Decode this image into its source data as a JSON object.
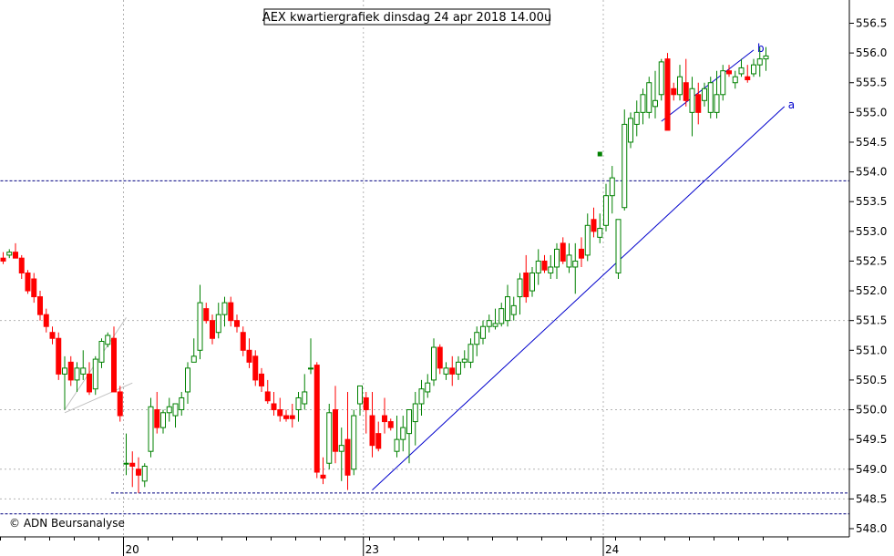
{
  "title": "AEX kwartiergrafiek dinsdag 24 apr 2018 14.00u",
  "copyright": "© ADN Beursanalyse",
  "colors": {
    "up": "#008000",
    "down": "#ff0000",
    "trendline": "#0000cc",
    "level": "#000080",
    "grid": "#b4b4b4",
    "axis": "#000000"
  },
  "chart_data": {
    "type": "candlestick",
    "title": "AEX kwartiergrafiek dinsdag 24 apr 2018 14.00u",
    "y_axis": {
      "min": 548.0,
      "max": 556.75,
      "ticks": [
        "548.0",
        "548.5",
        "549.0",
        "549.5",
        "550.0",
        "550.5",
        "551.0",
        "551.5",
        "552.0",
        "552.5",
        "553.0",
        "553.5",
        "554.0",
        "554.5",
        "555.0",
        "555.5",
        "556.0",
        "556.5"
      ]
    },
    "x_axis": {
      "date_labels": [
        {
          "label": "20",
          "bar": 20
        },
        {
          "label": "23",
          "bar": 59
        },
        {
          "label": "24",
          "bar": 98
        }
      ],
      "grid_bars": [
        20,
        59,
        98
      ]
    },
    "horizontal_grid": [
      548.5,
      549.0,
      550.0,
      551.5
    ],
    "levels": [
      {
        "value": 553.85,
        "from_bar": 0,
        "to_bar": 133
      },
      {
        "value": 548.6,
        "from_bar": 18,
        "to_bar": 133
      },
      {
        "value": 548.25,
        "from_bar": 0,
        "to_bar": 133
      }
    ],
    "trendlines": [
      {
        "label": "a",
        "from": [
          60,
          548.65
        ],
        "to": [
          127,
          555.1
        ]
      },
      {
        "label": "b",
        "from": [
          107,
          554.85
        ],
        "to": [
          122,
          556.05
        ]
      },
      {
        "label": "",
        "from": [
          10,
          550.0
        ],
        "to": [
          20,
          551.55
        ],
        "color": "#c0c0c0"
      },
      {
        "label": "",
        "from": [
          10,
          549.95
        ],
        "to": [
          21,
          550.45
        ],
        "color": "#c0c0c0"
      }
    ],
    "markers": [
      {
        "bar": 97,
        "value": 554.3,
        "color": "#008000"
      }
    ],
    "ohlc": [
      [
        552.55,
        552.65,
        552.45,
        552.5
      ],
      [
        552.6,
        552.7,
        552.55,
        552.65
      ],
      [
        552.65,
        552.8,
        552.6,
        552.55
      ],
      [
        552.55,
        552.6,
        552.2,
        552.3
      ],
      [
        552.3,
        552.35,
        551.95,
        552.0
      ],
      [
        552.2,
        552.3,
        551.8,
        551.9
      ],
      [
        551.9,
        552.0,
        551.5,
        551.6
      ],
      [
        551.6,
        551.7,
        551.3,
        551.4
      ],
      [
        551.3,
        551.4,
        551.1,
        551.2
      ],
      [
        551.2,
        551.3,
        550.5,
        550.6
      ],
      [
        550.6,
        550.9,
        550.0,
        550.7
      ],
      [
        550.8,
        550.9,
        550.4,
        550.5
      ],
      [
        550.5,
        550.8,
        550.3,
        550.7
      ],
      [
        550.6,
        551.0,
        550.5,
        550.7
      ],
      [
        550.6,
        550.8,
        550.25,
        550.3
      ],
      [
        550.35,
        550.9,
        550.25,
        550.85
      ],
      [
        550.8,
        551.2,
        550.7,
        551.15
      ],
      [
        551.1,
        551.3,
        551.05,
        551.25
      ],
      [
        551.2,
        551.4,
        550.3,
        550.3
      ],
      [
        550.3,
        550.4,
        549.8,
        549.9
      ],
      [
        549.1,
        549.6,
        548.9,
        549.1
      ],
      [
        549.1,
        549.3,
        548.7,
        549.05
      ],
      [
        549.0,
        549.2,
        548.6,
        548.9
      ],
      [
        548.8,
        549.1,
        548.7,
        549.05
      ],
      [
        549.3,
        550.2,
        549.2,
        550.05
      ],
      [
        550.0,
        550.3,
        549.6,
        549.7
      ],
      [
        549.7,
        550.0,
        549.6,
        549.95
      ],
      [
        549.95,
        550.2,
        549.8,
        550.05
      ],
      [
        549.9,
        550.1,
        549.7,
        550.1
      ],
      [
        550.0,
        550.3,
        549.9,
        550.2
      ],
      [
        550.3,
        550.8,
        550.1,
        550.7
      ],
      [
        550.8,
        551.2,
        550.8,
        550.9
      ],
      [
        551.0,
        552.1,
        550.85,
        551.8
      ],
      [
        551.7,
        551.8,
        551.45,
        551.5
      ],
      [
        551.5,
        551.6,
        551.1,
        551.2
      ],
      [
        551.3,
        551.8,
        551.2,
        551.6
      ],
      [
        551.6,
        551.9,
        551.4,
        551.8
      ],
      [
        551.8,
        551.9,
        551.4,
        551.5
      ],
      [
        551.5,
        551.6,
        551.3,
        551.4
      ],
      [
        551.3,
        551.4,
        550.9,
        551.0
      ],
      [
        551.0,
        551.2,
        550.7,
        550.8
      ],
      [
        550.9,
        551.0,
        550.4,
        550.5
      ],
      [
        550.6,
        550.7,
        550.3,
        550.4
      ],
      [
        550.3,
        550.5,
        550.1,
        550.15
      ],
      [
        550.1,
        550.3,
        549.9,
        550.0
      ],
      [
        550.0,
        550.2,
        549.8,
        549.9
      ],
      [
        549.9,
        550.0,
        549.8,
        549.85
      ],
      [
        549.9,
        550.1,
        549.7,
        549.85
      ],
      [
        550.0,
        550.3,
        549.8,
        550.2
      ],
      [
        550.1,
        550.6,
        550.0,
        550.3
      ],
      [
        550.7,
        551.2,
        550.6,
        550.7
      ],
      [
        550.75,
        550.8,
        548.85,
        548.95
      ],
      [
        548.9,
        549.2,
        548.75,
        548.85
      ],
      [
        549.1,
        550.1,
        549.0,
        549.95
      ],
      [
        550.0,
        550.4,
        549.1,
        549.3
      ],
      [
        549.3,
        549.7,
        548.8,
        549.4
      ],
      [
        549.5,
        550.3,
        548.65,
        548.9
      ],
      [
        549.0,
        550.0,
        548.9,
        549.9
      ],
      [
        550.1,
        550.4,
        549.9,
        550.4
      ],
      [
        550.2,
        550.3,
        549.6,
        550.0
      ],
      [
        549.9,
        550.3,
        549.2,
        549.4
      ],
      [
        549.6,
        549.8,
        549.3,
        549.35
      ],
      [
        549.9,
        550.2,
        549.6,
        549.8
      ],
      [
        549.8,
        549.85,
        549.65,
        549.7
      ],
      [
        549.3,
        549.9,
        549.2,
        549.5
      ],
      [
        549.5,
        549.9,
        549.3,
        549.7
      ],
      [
        549.6,
        550.0,
        549.1,
        550.0
      ],
      [
        549.8,
        550.3,
        549.4,
        550.1
      ],
      [
        550.1,
        550.5,
        549.9,
        550.35
      ],
      [
        550.3,
        550.6,
        550.2,
        550.45
      ],
      [
        550.5,
        551.2,
        550.4,
        551.05
      ],
      [
        551.05,
        551.1,
        550.6,
        550.7
      ],
      [
        550.6,
        550.8,
        550.5,
        550.7
      ],
      [
        550.7,
        550.9,
        550.4,
        550.6
      ],
      [
        550.6,
        550.9,
        550.5,
        550.8
      ],
      [
        550.8,
        551.0,
        550.7,
        550.85
      ],
      [
        550.8,
        551.2,
        550.7,
        551.1
      ],
      [
        551.1,
        551.4,
        550.9,
        551.3
      ],
      [
        551.2,
        551.5,
        551.1,
        551.4
      ],
      [
        551.4,
        551.6,
        551.3,
        551.5
      ],
      [
        551.4,
        551.7,
        551.35,
        551.45
      ],
      [
        551.45,
        551.8,
        551.4,
        551.7
      ],
      [
        551.5,
        552.1,
        551.4,
        551.9
      ],
      [
        551.6,
        551.9,
        551.5,
        551.75
      ],
      [
        551.9,
        552.3,
        551.6,
        552.2
      ],
      [
        552.3,
        552.6,
        551.8,
        551.9
      ],
      [
        552.0,
        552.4,
        551.9,
        552.3
      ],
      [
        552.3,
        552.7,
        552.1,
        552.5
      ],
      [
        552.5,
        552.6,
        552.3,
        552.35
      ],
      [
        552.3,
        552.6,
        552.2,
        552.4
      ],
      [
        552.4,
        552.8,
        552.2,
        552.7
      ],
      [
        552.8,
        552.9,
        552.45,
        552.5
      ],
      [
        552.4,
        552.8,
        552.3,
        552.6
      ],
      [
        552.4,
        552.8,
        551.95,
        552.5
      ],
      [
        552.7,
        552.9,
        552.4,
        552.55
      ],
      [
        552.6,
        553.3,
        552.5,
        553.1
      ],
      [
        553.2,
        553.4,
        552.9,
        553.0
      ],
      [
        552.9,
        553.3,
        552.8,
        553.05
      ],
      [
        553.1,
        553.8,
        553.0,
        553.6
      ],
      [
        553.6,
        554.1,
        553.3,
        553.9
      ],
      [
        552.3,
        553.2,
        552.2,
        553.2
      ],
      [
        553.4,
        555.05,
        553.35,
        554.8
      ],
      [
        554.5,
        555.0,
        554.4,
        554.9
      ],
      [
        554.8,
        555.2,
        554.6,
        555.0
      ],
      [
        555.0,
        555.4,
        554.8,
        555.3
      ],
      [
        555.0,
        555.6,
        554.9,
        555.5
      ],
      [
        555.1,
        555.7,
        554.9,
        555.2
      ],
      [
        555.3,
        555.9,
        555.2,
        555.85
      ],
      [
        555.9,
        556.0,
        554.7,
        554.7
      ],
      [
        555.4,
        555.5,
        555.2,
        555.3
      ],
      [
        555.3,
        555.8,
        555.2,
        555.6
      ],
      [
        555.5,
        555.9,
        555.1,
        555.2
      ],
      [
        555.0,
        555.6,
        554.6,
        555.4
      ],
      [
        555.3,
        555.5,
        554.8,
        555.0
      ],
      [
        555.2,
        555.5,
        555.1,
        555.4
      ],
      [
        555.0,
        555.6,
        554.9,
        555.5
      ],
      [
        555.0,
        555.7,
        554.9,
        555.3
      ],
      [
        555.3,
        555.8,
        555.2,
        555.7
      ],
      [
        555.7,
        555.8,
        555.6,
        555.65
      ],
      [
        555.5,
        555.7,
        555.4,
        555.6
      ],
      [
        555.65,
        555.9,
        555.6,
        555.75
      ],
      [
        555.6,
        555.8,
        555.5,
        555.55
      ],
      [
        555.65,
        555.9,
        555.6,
        555.8
      ],
      [
        555.8,
        556.1,
        555.6,
        555.9
      ],
      [
        555.9,
        556.1,
        555.7,
        555.95
      ]
    ]
  }
}
